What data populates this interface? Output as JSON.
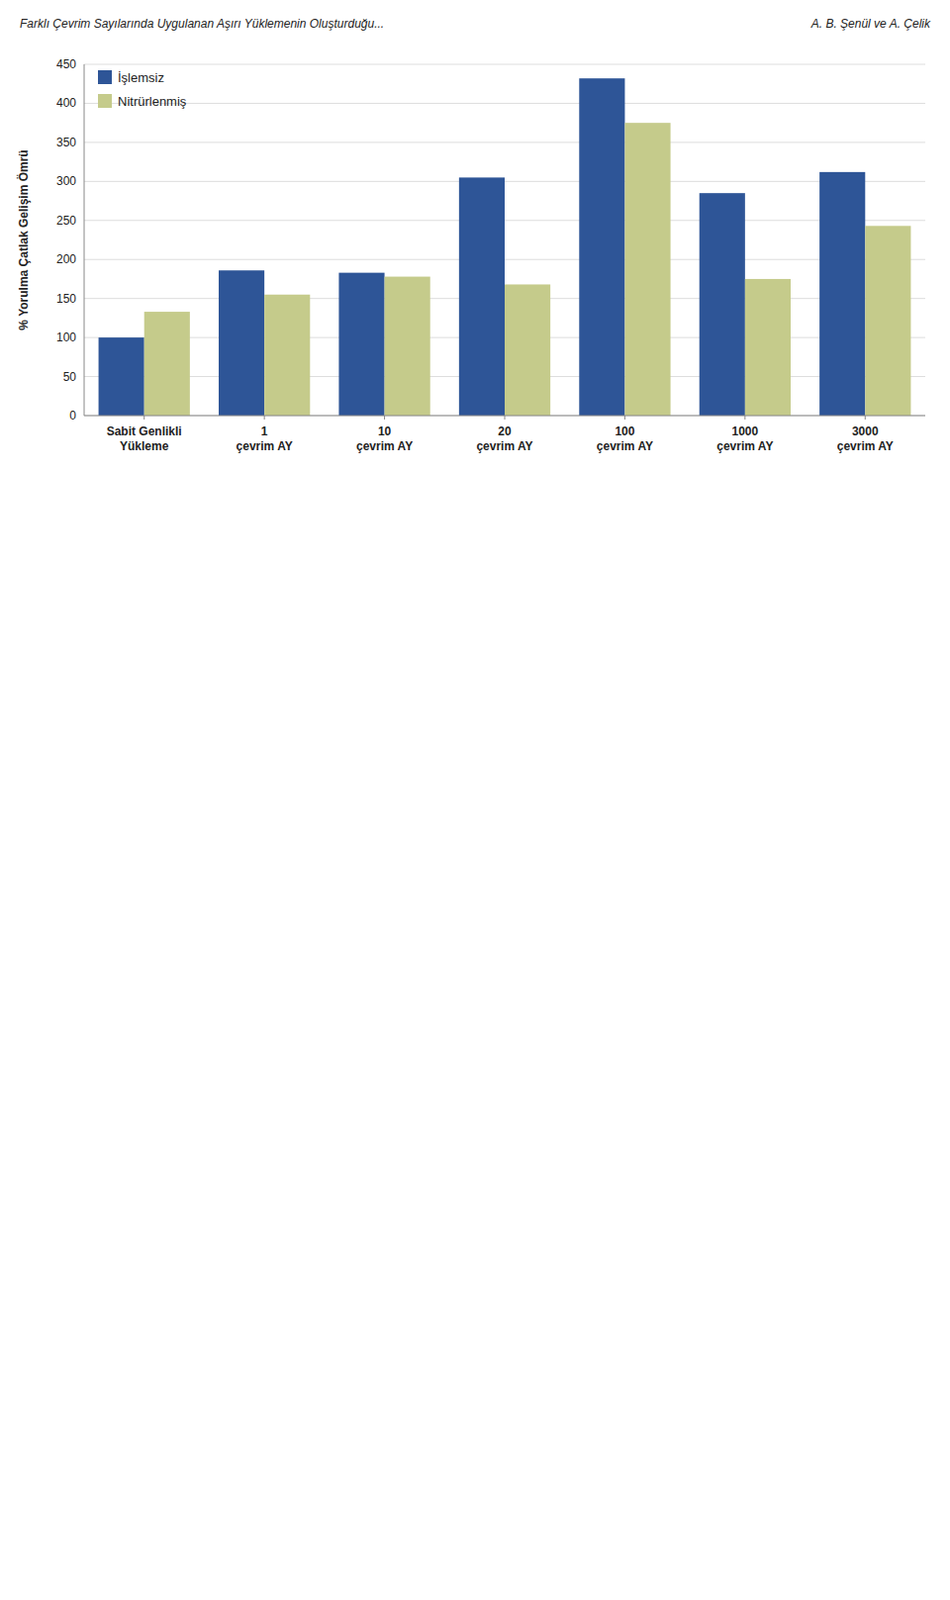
{
  "chart_data": {
    "type": "bar",
    "title": "Farklı Çevrim Sayılarında Uygulanan Aşırı Yüklemenin Oluşturduğu...",
    "subtitle": "A. B. Şenül ve A. Çelik",
    "y_label": "% Yorulma Çatlak Gelişim Ömrü",
    "categories": [
      "Sabit Genlikli\nYükleme",
      "1\nçevrim AY",
      "10\nçevrim AY",
      "20\nçevrim AY",
      "100\nçevrim AY",
      "1000\nçevrim AY",
      "3000\nçevrim AY"
    ],
    "series": [
      {
        "name": "İşlemsiz",
        "color": "#2E5597",
        "values": [
          100,
          186,
          183,
          305,
          432,
          285,
          312
        ]
      },
      {
        "name": "Nitrürlenmiş",
        "color": "#C5CB8B",
        "values": [
          133,
          155,
          178,
          168,
          375,
          175,
          243
        ]
      }
    ],
    "ylim": [
      0,
      450
    ],
    "yticks": [
      0,
      50,
      100,
      150,
      200,
      250,
      300,
      350,
      400,
      450
    ],
    "grid": true,
    "legend": "upper left"
  }
}
